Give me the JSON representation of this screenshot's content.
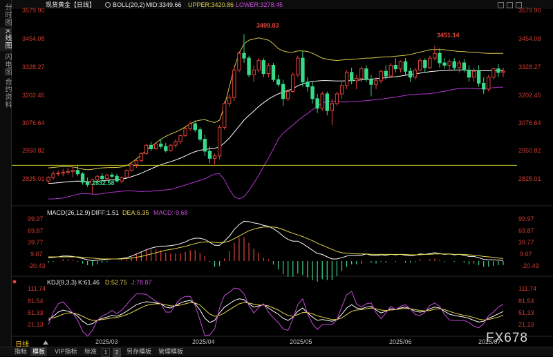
{
  "sidebar": {
    "tabs": [
      "分时图",
      "K线图",
      "闪电图",
      "合约资料"
    ],
    "active": 1
  },
  "header": {
    "instrument": "现货黄金【日线】",
    "boll_label": "BOLL(20,2)",
    "mid_text": "MID:3349.66",
    "upper_text": "UPPER:3420.86",
    "lower_text": "LOWER:3278.45"
  },
  "macd_header": {
    "label": "MACD(26,12,9)",
    "diff_text": "DIFF:1.51",
    "dea_text": "DEA:6.35",
    "macd_text": "MACD:-9.68"
  },
  "kdj_header": {
    "label": "KDJ(9,3,3)",
    "k_text": "K:61.46",
    "d_text": "D:52.75",
    "j_text": "J:78.87"
  },
  "price_axis": [
    "3579.90",
    "3454.08",
    "3328.27",
    "3202.45",
    "3076.64",
    "2950.82",
    "2825.01"
  ],
  "macd_axis": [
    "99.97",
    "69.87",
    "39.77",
    "9.67",
    "-20.43"
  ],
  "kdj_axis": [
    "111.74",
    "81.54",
    "51.33",
    "21.13"
  ],
  "annotations": {
    "high": "3499.83",
    "high2": "3451.14",
    "low": "2832.58"
  },
  "x_axis": [
    "2025/03",
    "2025/04",
    "2025/05",
    "2025/06",
    "2025/07"
  ],
  "bottom_bar": {
    "period": "日线",
    "items": [
      "指标",
      "模板",
      "VIP指标",
      "标准",
      "1",
      "2",
      "另存模板",
      "管理模板"
    ],
    "active_index": 1
  },
  "watermark": "FX678",
  "colors": {
    "up": "#e8443a",
    "down": "#39d98a",
    "upper": "#d9c94a",
    "mid": "#ffffff",
    "lower": "#b136cf",
    "hline": "#d6d61e",
    "diff": "#ffffff",
    "dea": "#e5d64a",
    "j": "#c84bdb"
  },
  "chart_data": {
    "type": "candlestick",
    "instrument": "现货黄金【日线】",
    "hline": 2950.82,
    "ylim": [
      2790,
      3600
    ],
    "candles": [
      {
        "o": 2885,
        "h": 2905,
        "l": 2875,
        "c": 2900
      },
      {
        "o": 2900,
        "h": 2925,
        "l": 2890,
        "c": 2915
      },
      {
        "o": 2915,
        "h": 2930,
        "l": 2905,
        "c": 2918
      },
      {
        "o": 2918,
        "h": 2935,
        "l": 2905,
        "c": 2922
      },
      {
        "o": 2922,
        "h": 2940,
        "l": 2912,
        "c": 2925
      },
      {
        "o": 2925,
        "h": 2945,
        "l": 2900,
        "c": 2930
      },
      {
        "o": 2930,
        "h": 2950,
        "l": 2905,
        "c": 2915
      },
      {
        "o": 2915,
        "h": 2922,
        "l": 2870,
        "c": 2880
      },
      {
        "o": 2880,
        "h": 2900,
        "l": 2860,
        "c": 2870
      },
      {
        "o": 2870,
        "h": 2895,
        "l": 2832,
        "c": 2890
      },
      {
        "o": 2890,
        "h": 2910,
        "l": 2878,
        "c": 2905
      },
      {
        "o": 2905,
        "h": 2918,
        "l": 2885,
        "c": 2895
      },
      {
        "o": 2895,
        "h": 2915,
        "l": 2885,
        "c": 2910
      },
      {
        "o": 2910,
        "h": 2920,
        "l": 2898,
        "c": 2905
      },
      {
        "o": 2905,
        "h": 2915,
        "l": 2880,
        "c": 2885
      },
      {
        "o": 2885,
        "h": 2905,
        "l": 2875,
        "c": 2900
      },
      {
        "o": 2900,
        "h": 2935,
        "l": 2898,
        "c": 2930
      },
      {
        "o": 2930,
        "h": 2960,
        "l": 2925,
        "c": 2955
      },
      {
        "o": 2955,
        "h": 2975,
        "l": 2940,
        "c": 2970
      },
      {
        "o": 2970,
        "h": 3005,
        "l": 2965,
        "c": 3000
      },
      {
        "o": 3000,
        "h": 3040,
        "l": 2995,
        "c": 3035
      },
      {
        "o": 3035,
        "h": 3050,
        "l": 3010,
        "c": 3020
      },
      {
        "o": 3020,
        "h": 3045,
        "l": 3015,
        "c": 3040
      },
      {
        "o": 3040,
        "h": 3060,
        "l": 3020,
        "c": 3030
      },
      {
        "o": 3030,
        "h": 3045,
        "l": 3005,
        "c": 3012
      },
      {
        "o": 3012,
        "h": 3040,
        "l": 3008,
        "c": 3035
      },
      {
        "o": 3035,
        "h": 3060,
        "l": 3025,
        "c": 3050
      },
      {
        "o": 3050,
        "h": 3080,
        "l": 3040,
        "c": 3075
      },
      {
        "o": 3075,
        "h": 3110,
        "l": 3070,
        "c": 3105
      },
      {
        "o": 3105,
        "h": 3135,
        "l": 3095,
        "c": 3125
      },
      {
        "o": 3125,
        "h": 3140,
        "l": 3090,
        "c": 3100
      },
      {
        "o": 3100,
        "h": 3110,
        "l": 3050,
        "c": 3060
      },
      {
        "o": 3060,
        "h": 3080,
        "l": 2990,
        "c": 3010
      },
      {
        "o": 3010,
        "h": 3030,
        "l": 2960,
        "c": 2980
      },
      {
        "o": 2980,
        "h": 3000,
        "l": 2955,
        "c": 2990
      },
      {
        "o": 2990,
        "h": 3120,
        "l": 2975,
        "c": 3110
      },
      {
        "o": 3110,
        "h": 3220,
        "l": 3100,
        "c": 3210
      },
      {
        "o": 3210,
        "h": 3250,
        "l": 3195,
        "c": 3235
      },
      {
        "o": 3235,
        "h": 3370,
        "l": 3220,
        "c": 3350
      },
      {
        "o": 3350,
        "h": 3430,
        "l": 3340,
        "c": 3420
      },
      {
        "o": 3420,
        "h": 3499.83,
        "l": 3380,
        "c": 3400
      },
      {
        "o": 3400,
        "h": 3410,
        "l": 3320,
        "c": 3330
      },
      {
        "o": 3330,
        "h": 3370,
        "l": 3300,
        "c": 3350
      },
      {
        "o": 3350,
        "h": 3400,
        "l": 3340,
        "c": 3390
      },
      {
        "o": 3390,
        "h": 3400,
        "l": 3320,
        "c": 3335
      },
      {
        "o": 3335,
        "h": 3380,
        "l": 3320,
        "c": 3370
      },
      {
        "o": 3370,
        "h": 3380,
        "l": 3300,
        "c": 3310
      },
      {
        "o": 3310,
        "h": 3330,
        "l": 3280,
        "c": 3290
      },
      {
        "o": 3290,
        "h": 3310,
        "l": 3200,
        "c": 3230
      },
      {
        "o": 3230,
        "h": 3270,
        "l": 3220,
        "c": 3260
      },
      {
        "o": 3260,
        "h": 3340,
        "l": 3255,
        "c": 3330
      },
      {
        "o": 3330,
        "h": 3410,
        "l": 3320,
        "c": 3400
      },
      {
        "o": 3400,
        "h": 3430,
        "l": 3280,
        "c": 3300
      },
      {
        "o": 3300,
        "h": 3320,
        "l": 3260,
        "c": 3280
      },
      {
        "o": 3280,
        "h": 3300,
        "l": 3210,
        "c": 3230
      },
      {
        "o": 3230,
        "h": 3250,
        "l": 3170,
        "c": 3190
      },
      {
        "o": 3190,
        "h": 3260,
        "l": 3180,
        "c": 3250
      },
      {
        "o": 3250,
        "h": 3260,
        "l": 3160,
        "c": 3180
      },
      {
        "o": 3180,
        "h": 3230,
        "l": 3120,
        "c": 3210
      },
      {
        "o": 3210,
        "h": 3260,
        "l": 3200,
        "c": 3250
      },
      {
        "o": 3250,
        "h": 3300,
        "l": 3230,
        "c": 3285
      },
      {
        "o": 3285,
        "h": 3350,
        "l": 3270,
        "c": 3340
      },
      {
        "o": 3340,
        "h": 3360,
        "l": 3290,
        "c": 3305
      },
      {
        "o": 3305,
        "h": 3330,
        "l": 3270,
        "c": 3315
      },
      {
        "o": 3315,
        "h": 3365,
        "l": 3300,
        "c": 3355
      },
      {
        "o": 3355,
        "h": 3370,
        "l": 3300,
        "c": 3310
      },
      {
        "o": 3310,
        "h": 3330,
        "l": 3240,
        "c": 3290
      },
      {
        "o": 3290,
        "h": 3320,
        "l": 3270,
        "c": 3305
      },
      {
        "o": 3305,
        "h": 3350,
        "l": 3295,
        "c": 3345
      },
      {
        "o": 3345,
        "h": 3370,
        "l": 3310,
        "c": 3325
      },
      {
        "o": 3325,
        "h": 3380,
        "l": 3320,
        "c": 3370
      },
      {
        "o": 3370,
        "h": 3400,
        "l": 3340,
        "c": 3355
      },
      {
        "o": 3355,
        "h": 3390,
        "l": 3340,
        "c": 3385
      },
      {
        "o": 3385,
        "h": 3400,
        "l": 3330,
        "c": 3345
      },
      {
        "o": 3345,
        "h": 3360,
        "l": 3300,
        "c": 3320
      },
      {
        "o": 3320,
        "h": 3360,
        "l": 3310,
        "c": 3350
      },
      {
        "o": 3350,
        "h": 3400,
        "l": 3345,
        "c": 3390
      },
      {
        "o": 3390,
        "h": 3400,
        "l": 3340,
        "c": 3360
      },
      {
        "o": 3360,
        "h": 3410,
        "l": 3355,
        "c": 3400
      },
      {
        "o": 3400,
        "h": 3451.14,
        "l": 3390,
        "c": 3420
      },
      {
        "o": 3420,
        "h": 3440,
        "l": 3360,
        "c": 3380
      },
      {
        "o": 3380,
        "h": 3400,
        "l": 3355,
        "c": 3370
      },
      {
        "o": 3370,
        "h": 3395,
        "l": 3345,
        "c": 3385
      },
      {
        "o": 3385,
        "h": 3400,
        "l": 3350,
        "c": 3360
      },
      {
        "o": 3360,
        "h": 3390,
        "l": 3340,
        "c": 3380
      },
      {
        "o": 3380,
        "h": 3395,
        "l": 3340,
        "c": 3350
      },
      {
        "o": 3350,
        "h": 3370,
        "l": 3300,
        "c": 3320
      },
      {
        "o": 3320,
        "h": 3360,
        "l": 3300,
        "c": 3345
      },
      {
        "o": 3345,
        "h": 3370,
        "l": 3280,
        "c": 3295
      },
      {
        "o": 3295,
        "h": 3320,
        "l": 3250,
        "c": 3270
      },
      {
        "o": 3270,
        "h": 3330,
        "l": 3260,
        "c": 3320
      },
      {
        "o": 3320,
        "h": 3360,
        "l": 3310,
        "c": 3355
      },
      {
        "o": 3355,
        "h": 3375,
        "l": 3320,
        "c": 3340
      },
      {
        "o": 3340,
        "h": 3360,
        "l": 3320,
        "c": 3345
      }
    ],
    "boll_upper": [
      2940,
      2942,
      2944,
      2946,
      2945,
      2944,
      2940,
      2935,
      2932,
      2934,
      2938,
      2940,
      2941,
      2942,
      2942,
      2944,
      2950,
      2962,
      2978,
      2995,
      3012,
      3030,
      3045,
      3060,
      3072,
      3082,
      3090,
      3100,
      3112,
      3125,
      3135,
      3140,
      3142,
      3135,
      3130,
      3140,
      3200,
      3280,
      3360,
      3420,
      3460,
      3475,
      3480,
      3485,
      3480,
      3475,
      3460,
      3440,
      3430,
      3425,
      3425,
      3430,
      3430,
      3428,
      3420,
      3410,
      3400,
      3395,
      3392,
      3390,
      3392,
      3394,
      3395,
      3396,
      3398,
      3400,
      3400,
      3402,
      3404,
      3405,
      3406,
      3408,
      3410,
      3412,
      3415,
      3420,
      3425,
      3430,
      3435,
      3436,
      3436,
      3435,
      3432,
      3430,
      3428,
      3427,
      3425,
      3424,
      3423,
      3421,
      3420,
      3420,
      3420,
      3420
    ],
    "boll_mid": [
      2875,
      2876,
      2878,
      2880,
      2882,
      2884,
      2885,
      2884,
      2882,
      2882,
      2884,
      2886,
      2888,
      2890,
      2891,
      2893,
      2897,
      2903,
      2910,
      2918,
      2927,
      2936,
      2945,
      2953,
      2960,
      2966,
      2973,
      2981,
      2990,
      3000,
      3008,
      3014,
      3018,
      3020,
      3022,
      3028,
      3045,
      3065,
      3090,
      3115,
      3140,
      3160,
      3178,
      3197,
      3213,
      3228,
      3240,
      3250,
      3258,
      3264,
      3272,
      3284,
      3292,
      3298,
      3302,
      3304,
      3306,
      3306,
      3305,
      3304,
      3304,
      3305,
      3306,
      3307,
      3309,
      3311,
      3312,
      3314,
      3316,
      3318,
      3320,
      3322,
      3325,
      3328,
      3331,
      3334,
      3337,
      3340,
      3343,
      3345,
      3347,
      3348,
      3349,
      3350,
      3350,
      3350,
      3349,
      3348,
      3347,
      3347,
      3347,
      3348,
      3349,
      3349
    ],
    "boll_lower": [
      2810,
      2810,
      2812,
      2814,
      2819,
      2824,
      2830,
      2833,
      2832,
      2830,
      2830,
      2832,
      2835,
      2838,
      2840,
      2842,
      2844,
      2844,
      2842,
      2841,
      2842,
      2842,
      2845,
      2846,
      2848,
      2850,
      2856,
      2862,
      2868,
      2875,
      2881,
      2888,
      2894,
      2905,
      2914,
      2916,
      2890,
      2850,
      2820,
      2810,
      2820,
      2845,
      2876,
      2909,
      2946,
      2981,
      3020,
      3060,
      3086,
      3103,
      3119,
      3138,
      3154,
      3168,
      3184,
      3198,
      3212,
      3217,
      3218,
      3218,
      3216,
      3216,
      3217,
      3218,
      3220,
      3222,
      3224,
      3226,
      3228,
      3231,
      3234,
      3236,
      3240,
      3244,
      3247,
      3248,
      3249,
      3250,
      3251,
      3254,
      3258,
      3261,
      3266,
      3270,
      3272,
      3273,
      3273,
      3272,
      3271,
      3273,
      3274,
      3276,
      3278,
      3278
    ],
    "macd": {
      "ylim": [
        -30,
        110
      ],
      "diff": [
        8,
        9,
        10,
        12,
        12,
        11,
        9,
        6,
        3,
        1,
        2,
        3,
        4,
        5,
        5,
        6,
        8,
        12,
        17,
        22,
        27,
        31,
        34,
        36,
        36,
        37,
        39,
        42,
        46,
        52,
        55,
        55,
        52,
        45,
        38,
        38,
        48,
        60,
        76,
        88,
        96,
        95,
        92,
        90,
        86,
        84,
        78,
        70,
        60,
        52,
        48,
        48,
        42,
        34,
        26,
        18,
        16,
        10,
        5,
        5,
        8,
        12,
        14,
        13,
        14,
        17,
        14,
        13,
        15,
        14,
        16,
        15,
        16,
        14,
        13,
        14,
        17,
        16,
        18,
        20,
        18,
        16,
        17,
        15,
        16,
        14,
        11,
        11,
        8,
        4,
        3,
        3,
        2,
        1.5
      ],
      "dea": [
        10,
        10,
        10,
        10,
        10,
        10,
        10,
        9,
        8,
        7,
        6,
        5,
        5,
        5,
        5,
        5,
        6,
        7,
        9,
        11,
        14,
        17,
        20,
        23,
        26,
        28,
        30,
        33,
        35,
        39,
        42,
        45,
        46,
        46,
        45,
        44,
        45,
        48,
        54,
        60,
        67,
        73,
        77,
        80,
        82,
        82,
        82,
        80,
        76,
        71,
        67,
        63,
        59,
        54,
        49,
        43,
        38,
        33,
        28,
        23,
        20,
        19,
        18,
        17,
        17,
        17,
        16,
        16,
        16,
        16,
        16,
        16,
        16,
        16,
        15,
        15,
        15,
        16,
        16,
        17,
        17,
        17,
        17,
        16,
        16,
        16,
        15,
        14,
        13,
        11,
        10,
        9,
        7,
        6.35
      ]
    },
    "kdj": {
      "ylim": [
        5,
        125
      ],
      "k": [
        40,
        50,
        60,
        65,
        62,
        58,
        50,
        38,
        30,
        32,
        40,
        45,
        48,
        52,
        50,
        55,
        62,
        70,
        78,
        82,
        85,
        84,
        82,
        80,
        72,
        70,
        76,
        82,
        86,
        88,
        80,
        65,
        45,
        35,
        40,
        58,
        72,
        80,
        88,
        92,
        90,
        80,
        72,
        75,
        78,
        70,
        62,
        55,
        45,
        40,
        48,
        62,
        70,
        58,
        48,
        40,
        42,
        40,
        38,
        42,
        55,
        70,
        78,
        70,
        68,
        72,
        74,
        65,
        58,
        62,
        68,
        66,
        70,
        72,
        68,
        62,
        60,
        62,
        68,
        72,
        70,
        62,
        55,
        52,
        50,
        48,
        45,
        40,
        36,
        38,
        45,
        50,
        56,
        61.46
      ],
      "d": [
        45,
        46,
        50,
        55,
        58,
        58,
        55,
        50,
        44,
        40,
        40,
        42,
        44,
        46,
        47,
        50,
        54,
        59,
        65,
        71,
        76,
        79,
        80,
        80,
        78,
        75,
        75,
        77,
        80,
        83,
        82,
        77,
        66,
        55,
        50,
        52,
        58,
        66,
        73,
        80,
        83,
        82,
        79,
        77,
        77,
        75,
        70,
        65,
        58,
        52,
        50,
        54,
        59,
        59,
        56,
        51,
        48,
        45,
        42,
        42,
        46,
        54,
        62,
        65,
        66,
        68,
        70,
        68,
        65,
        64,
        65,
        66,
        68,
        69,
        68,
        66,
        64,
        63,
        64,
        67,
        68,
        66,
        62,
        58,
        55,
        52,
        50,
        47,
        43,
        41,
        42,
        45,
        48,
        52.75
      ],
      "j": [
        30,
        60,
        80,
        85,
        72,
        58,
        40,
        14,
        2,
        16,
        40,
        51,
        56,
        64,
        56,
        65,
        78,
        92,
        104,
        104,
        103,
        94,
        86,
        80,
        60,
        60,
        78,
        92,
        98,
        98,
        76,
        41,
        3,
        5,
        20,
        70,
        100,
        108,
        118,
        116,
        104,
        76,
        58,
        71,
        80,
        60,
        46,
        35,
        19,
        16,
        44,
        78,
        92,
        56,
        32,
        18,
        30,
        30,
        30,
        42,
        73,
        102,
        110,
        80,
        72,
        80,
        82,
        59,
        44,
        58,
        74,
        66,
        74,
        78,
        68,
        54,
        52,
        60,
        76,
        82,
        74,
        54,
        41,
        40,
        40,
        40,
        35,
        26,
        22,
        32,
        51,
        60,
        72,
        78.87
      ]
    }
  }
}
